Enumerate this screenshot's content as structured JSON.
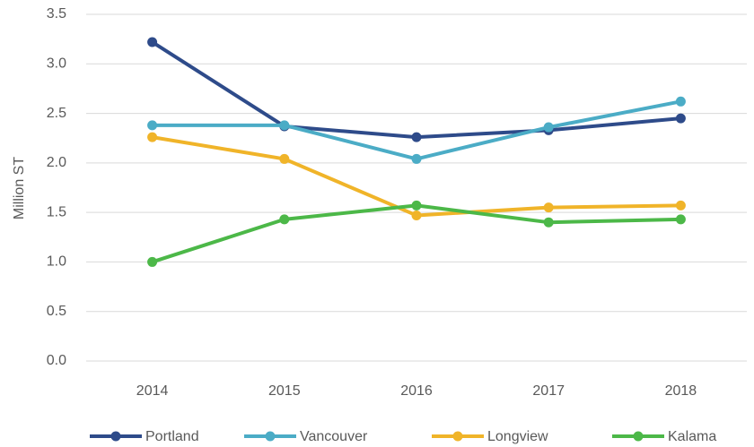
{
  "chart_data": {
    "type": "line",
    "y_label": "Million ST",
    "categories": [
      "2014",
      "2015",
      "2016",
      "2017",
      "2018"
    ],
    "series": [
      {
        "name": "Portland",
        "color": "#2e4b8a",
        "values": [
          3.22,
          2.37,
          2.26,
          2.33,
          2.45
        ]
      },
      {
        "name": "Vancouver",
        "color": "#4bacc6",
        "values": [
          2.38,
          2.38,
          2.04,
          2.36,
          2.62
        ]
      },
      {
        "name": "Longview",
        "color": "#f0b429",
        "values": [
          2.26,
          2.04,
          1.47,
          1.55,
          1.57
        ]
      },
      {
        "name": "Kalama",
        "color": "#4cb848",
        "values": [
          1.0,
          1.43,
          1.57,
          1.4,
          1.43
        ]
      }
    ],
    "ylim": [
      0,
      3.5
    ],
    "yticks": [
      {
        "value": 0,
        "label": "0.0"
      },
      0.5,
      {
        "value": 1,
        "label": "1.0"
      },
      1.5,
      {
        "value": 2,
        "label": "2.0"
      },
      2.5,
      {
        "value": 3,
        "label": "3.0"
      },
      3.5
    ],
    "grid": true,
    "legend": "bottom"
  }
}
